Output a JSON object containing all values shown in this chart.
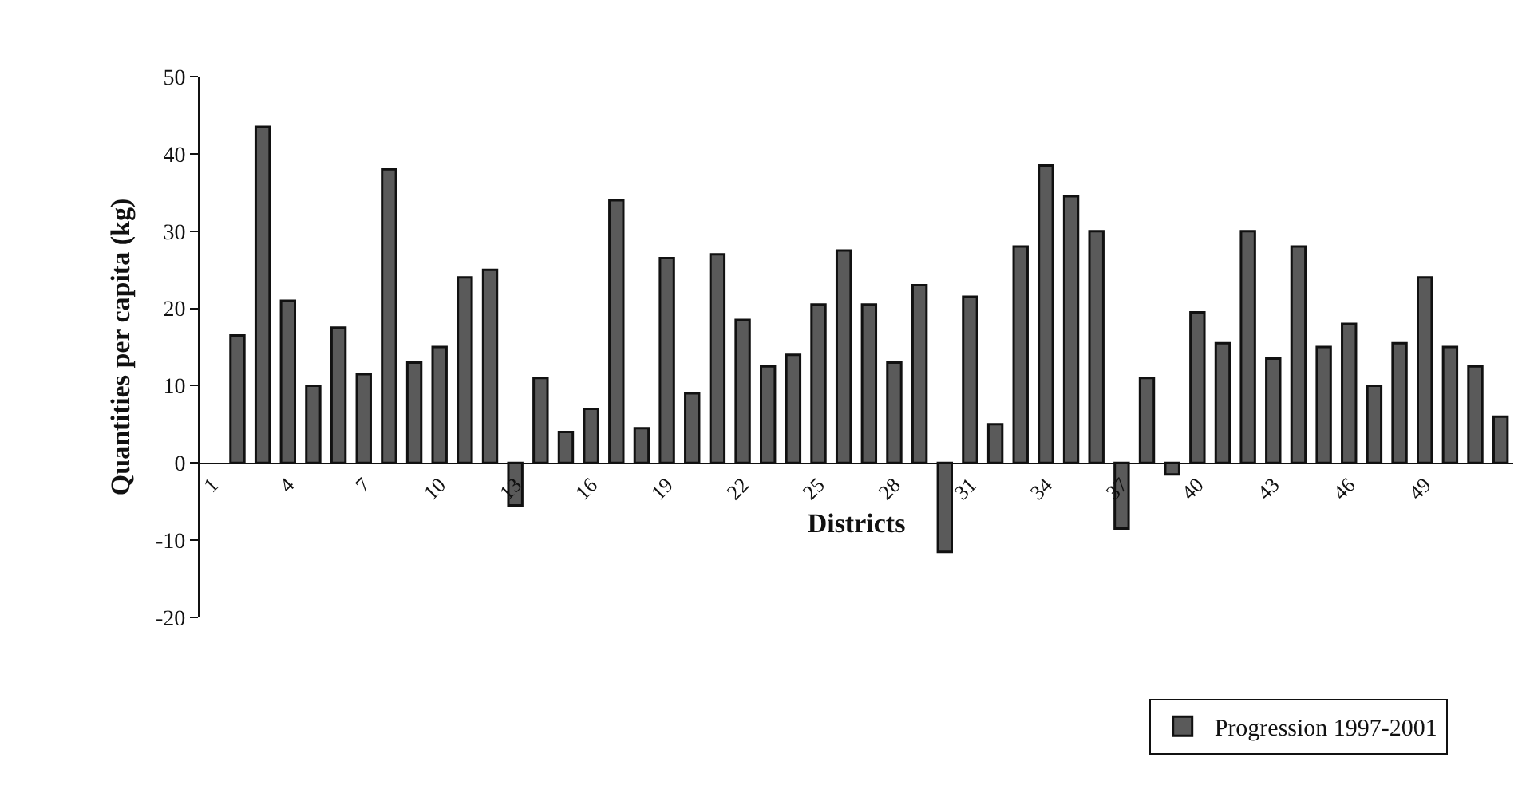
{
  "chart_data": {
    "type": "bar",
    "xlabel": "Districts",
    "ylabel": "Quantities per capita (kg)",
    "categories": [
      "1",
      null,
      null,
      "4",
      null,
      null,
      "7",
      null,
      null,
      "10",
      null,
      null,
      "13",
      null,
      null,
      "16",
      null,
      null,
      "19",
      null,
      null,
      "22",
      null,
      null,
      "25",
      null,
      null,
      "28",
      null,
      null,
      "31",
      null,
      null,
      "34",
      null,
      null,
      "37",
      null,
      null,
      "40",
      null,
      null,
      "43",
      null,
      null,
      "46",
      null,
      null,
      "49",
      null,
      null,
      null
    ],
    "series": [
      {
        "name": "Progression 1997-2001",
        "color": "#5a5a5a",
        "values": [
          null,
          16.5,
          43.5,
          21,
          10,
          17.5,
          11.5,
          38,
          13,
          15,
          24,
          25,
          -5.5,
          11,
          4,
          7,
          34,
          4.5,
          26.5,
          9,
          27,
          18.5,
          12.5,
          14,
          20.5,
          27.5,
          20.5,
          13,
          23,
          -11.5,
          21.5,
          5,
          28,
          38.5,
          34.5,
          30,
          -8.5,
          11,
          -1.5,
          19.5,
          15.5,
          30,
          13.5,
          28,
          15,
          18,
          10,
          15.5,
          24,
          15,
          12.5,
          6
        ]
      }
    ],
    "ylim": [
      -20,
      50
    ],
    "yticks": [
      -20,
      -10,
      0,
      10,
      20,
      30,
      40,
      50
    ],
    "grid": false,
    "legend": "bottom right"
  }
}
